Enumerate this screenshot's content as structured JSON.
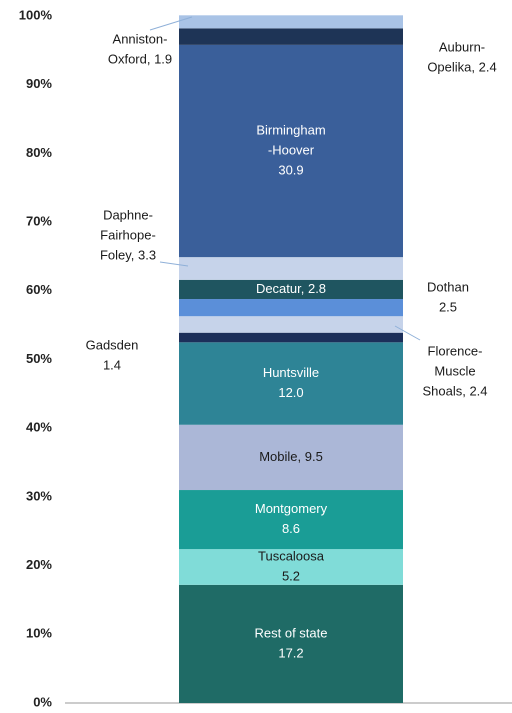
{
  "chart_data": {
    "type": "stacked-bar",
    "ylim": [
      0,
      100
    ],
    "yticks": [
      {
        "value": 0,
        "label": "0%"
      },
      {
        "value": 10,
        "label": "10%"
      },
      {
        "value": 20,
        "label": "20%"
      },
      {
        "value": 30,
        "label": "30%"
      },
      {
        "value": 40,
        "label": "40%"
      },
      {
        "value": 50,
        "label": "50%"
      },
      {
        "value": 60,
        "label": "60%"
      },
      {
        "value": 70,
        "label": "70%"
      },
      {
        "value": 80,
        "label": "80%"
      },
      {
        "value": 90,
        "label": "90%"
      },
      {
        "value": 100,
        "label": "100%"
      }
    ],
    "series": [
      {
        "label": [
          "Rest of state",
          "17.2"
        ],
        "values": [
          17.2
        ],
        "color": "#1f6b66",
        "text_color": "#ffffff"
      },
      {
        "label": [
          "Tuscaloosa",
          "5.2"
        ],
        "values": [
          5.2
        ],
        "color": "#80dcd8",
        "text_color": "#1a1a1a"
      },
      {
        "label": [
          "Montgomery",
          "8.6"
        ],
        "values": [
          8.6
        ],
        "color": "#1a9d96",
        "text_color": "#ffffff"
      },
      {
        "label": [
          "Mobile, 9.5"
        ],
        "values": [
          9.5
        ],
        "color": "#abb7d7",
        "text_color": "#1a1a1a"
      },
      {
        "label": [
          "Huntsville",
          "12.0"
        ],
        "values": [
          12.0
        ],
        "color": "#2e8496",
        "text_color": "#ffffff"
      },
      {
        "label": [
          "Gadsden",
          "1.4"
        ],
        "values": [
          1.4
        ],
        "color": "#1c2f5a",
        "text_color": "#1a1a1a"
      },
      {
        "label": [
          "Florence-",
          "Muscle",
          "Shoals, 2.4"
        ],
        "values": [
          2.4
        ],
        "color": "#c6d3ea",
        "text_color": "#1a1a1a"
      },
      {
        "label": [
          "Dothan",
          "2.5"
        ],
        "values": [
          2.5
        ],
        "color": "#5b8fd9",
        "text_color": "#1a1a1a"
      },
      {
        "label": [
          "Decatur, 2.8"
        ],
        "values": [
          2.8
        ],
        "color": "#1f5560",
        "text_color": "#ffffff"
      },
      {
        "label": [
          "Daphne-",
          "Fairhope-",
          "Foley, 3.3"
        ],
        "values": [
          3.3
        ],
        "color": "#c6d3ea",
        "text_color": "#1a1a1a"
      },
      {
        "label": [
          "Birmingham",
          "-Hoover",
          "30.9"
        ],
        "values": [
          30.9
        ],
        "color": "#3a5f9a",
        "text_color": "#ffffff"
      },
      {
        "label": [
          "Auburn-",
          "Opelika, 2.4"
        ],
        "values": [
          2.4
        ],
        "color": "#1e3456",
        "text_color": "#1a1a1a"
      },
      {
        "label": [
          "Anniston-",
          "Oxford, 1.9"
        ],
        "values": [
          1.9
        ],
        "color": "#a9c3e6",
        "text_color": "#1a1a1a"
      }
    ]
  }
}
